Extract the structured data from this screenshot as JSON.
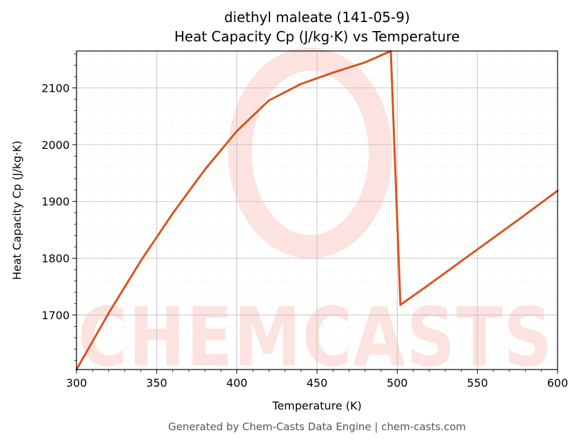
{
  "chart_data": {
    "type": "line",
    "title_line1": "diethyl maleate (141-05-9)",
    "title_line2": "Heat Capacity Cp (J/kg·K) vs Temperature",
    "xlabel": "Temperature (K)",
    "ylabel": "Heat Capacity Cp (J/kg·K)",
    "xlim": [
      300,
      600
    ],
    "ylim": [
      1604,
      2165
    ],
    "x_ticks": [
      300,
      350,
      400,
      450,
      500,
      550,
      600
    ],
    "y_ticks": [
      1700,
      1800,
      1900,
      2000,
      2100
    ],
    "grid": true,
    "series": [
      {
        "color": "#d9531e",
        "x": [
          300,
          320,
          340,
          360,
          380,
          400,
          420,
          440,
          460,
          480,
          496,
          502,
          520,
          540,
          560,
          580,
          600
        ],
        "y": [
          1604,
          1703,
          1795,
          1879,
          1956,
          2024,
          2078,
          2107,
          2127,
          2145,
          2165,
          1718,
          1754,
          1795,
          1836,
          1877,
          1919
        ]
      }
    ]
  },
  "watermark": "CHEMCASTS",
  "footer": "Generated by Chem-Casts Data Engine | chem-casts.com"
}
